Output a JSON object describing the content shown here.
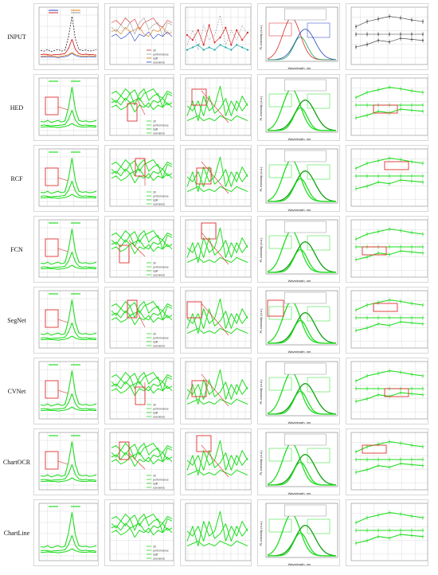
{
  "figure": {
    "rows": [
      {
        "label": "INPUT"
      },
      {
        "label": "HED"
      },
      {
        "label": "RCF"
      },
      {
        "label": "FCN"
      },
      {
        "label": "SegNet"
      },
      {
        "label": "CVNet"
      },
      {
        "label": "ChartOCR"
      },
      {
        "label": "ChartLine"
      }
    ],
    "columns": [
      {
        "kind": "line-peak"
      },
      {
        "kind": "multi-line-legend",
        "legend": [
          "30",
          "performance",
          "split",
          "scenarios"
        ]
      },
      {
        "kind": "zigzag-lines"
      },
      {
        "kind": "spectra",
        "xlabel": "Wavelength, nm",
        "ylabel": "PL intensity (a.u.)"
      },
      {
        "kind": "error-bar-lines"
      }
    ]
  },
  "colors": {
    "input_red": "#d62728",
    "input_black": "#222222",
    "input_blue": "#1f3fbf",
    "input_orange": "#e07a10",
    "input_gray": "#999999",
    "prediction_green": "#22dd22",
    "prediction_dark_green": "#0f9f0f",
    "highlight_box": "#e03030",
    "grid": "#dcdcdc"
  }
}
